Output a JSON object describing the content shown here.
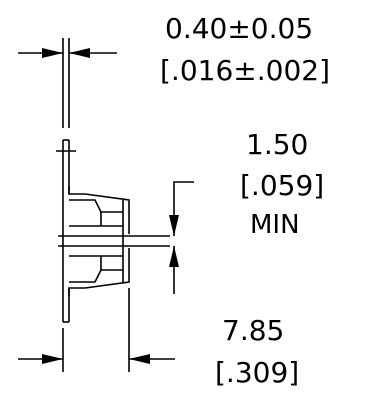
{
  "dimensions": {
    "thickness": {
      "metric": "0.40±0.05",
      "inch": "[.016±.002]"
    },
    "min_gap": {
      "metric": "1.50",
      "inch": "[.059]",
      "qualifier": "MIN"
    },
    "overall": {
      "metric": "7.85",
      "inch": "[.309]"
    }
  },
  "colors": {
    "line": "#000000",
    "background": "#ffffff"
  }
}
